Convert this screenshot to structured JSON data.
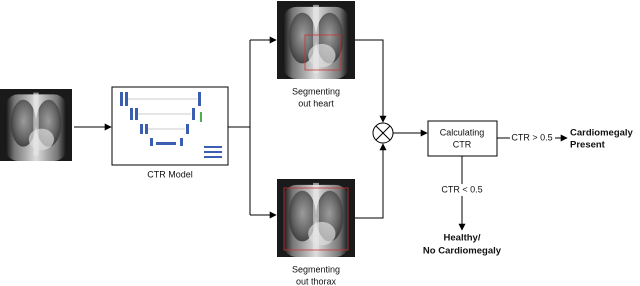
{
  "nodes": [
    {
      "id": "ctr-model",
      "label": "CTR Model"
    },
    {
      "id": "heart",
      "label": [
        "Segmenting",
        "out heart"
      ]
    },
    {
      "id": "thorax",
      "label": [
        "Segmenting",
        "out thorax"
      ]
    },
    {
      "id": "calc",
      "label": [
        "Calculating",
        "CTR"
      ]
    },
    {
      "id": "present",
      "label": [
        "Cardiomegaly",
        "Present"
      ]
    },
    {
      "id": "healthy",
      "label": [
        "Healthy/",
        "No Cardiomegaly"
      ]
    }
  ],
  "edges": [
    {
      "label": "CTR > 0.5"
    },
    {
      "label": "CTR < 0.5"
    }
  ]
}
